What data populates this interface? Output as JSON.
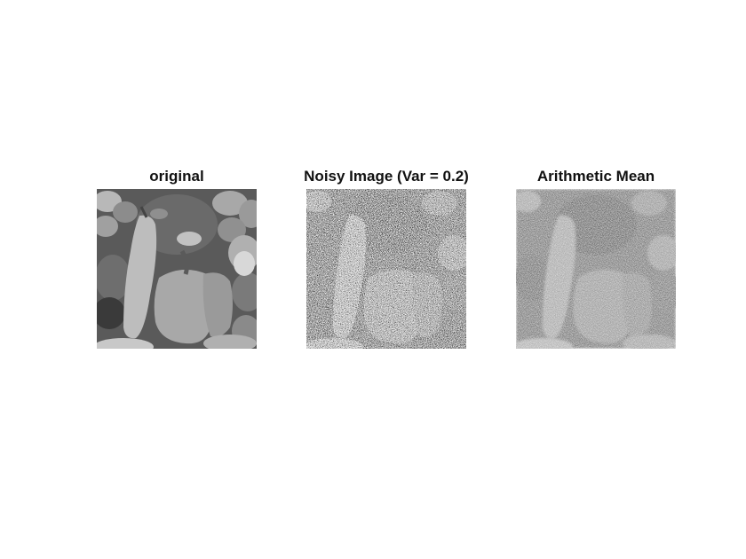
{
  "figure": {
    "panels": [
      {
        "title": "original",
        "image": "peppers-grayscale-original"
      },
      {
        "title": "Noisy Image (Var = 0.2)",
        "image": "peppers-grayscale-noisy"
      },
      {
        "title": "Arithmetic Mean",
        "image": "peppers-grayscale-arithmetic-mean-filtered"
      }
    ]
  }
}
